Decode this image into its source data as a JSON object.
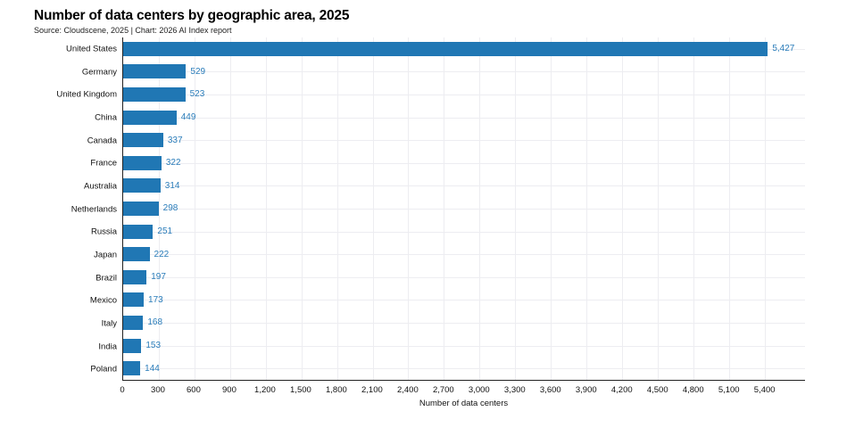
{
  "colors": {
    "bar": "#2077b4",
    "value_label": "#2b7dba",
    "grid": "#ededf1",
    "axis": "#222222",
    "text": "#111111",
    "title": "#000000"
  },
  "chart_data": {
    "type": "bar",
    "orientation": "horizontal",
    "title": "Number of data centers by geographic area, 2025",
    "subtitle": "Source: Cloudscene, 2025 | Chart: 2026 AI Index report",
    "categories": [
      "United States",
      "Germany",
      "United Kingdom",
      "China",
      "Canada",
      "France",
      "Australia",
      "Netherlands",
      "Russia",
      "Japan",
      "Brazil",
      "Mexico",
      "Italy",
      "India",
      "Poland"
    ],
    "values": [
      5427,
      529,
      523,
      449,
      337,
      322,
      314,
      298,
      251,
      222,
      197,
      173,
      168,
      153,
      144
    ],
    "value_labels": [
      "5,427",
      "529",
      "523",
      "449",
      "337",
      "322",
      "314",
      "298",
      "251",
      "222",
      "197",
      "173",
      "168",
      "153",
      "144"
    ],
    "xlabel": "Number of data centers",
    "xlim": [
      0,
      5740
    ],
    "xtick_step": 300,
    "xticks": [
      0,
      300,
      600,
      900,
      1200,
      1500,
      1800,
      2100,
      2400,
      2700,
      3000,
      3300,
      3600,
      3900,
      4200,
      4500,
      4800,
      5100,
      5400
    ],
    "xtick_labels": [
      "0",
      "300",
      "600",
      "900",
      "1,200",
      "1,500",
      "1,800",
      "2,100",
      "2,400",
      "2,700",
      "3,000",
      "3,300",
      "3,600",
      "3,900",
      "4,200",
      "4,500",
      "4,800",
      "5,100",
      "5,400"
    ],
    "grid": true,
    "legend": false
  }
}
